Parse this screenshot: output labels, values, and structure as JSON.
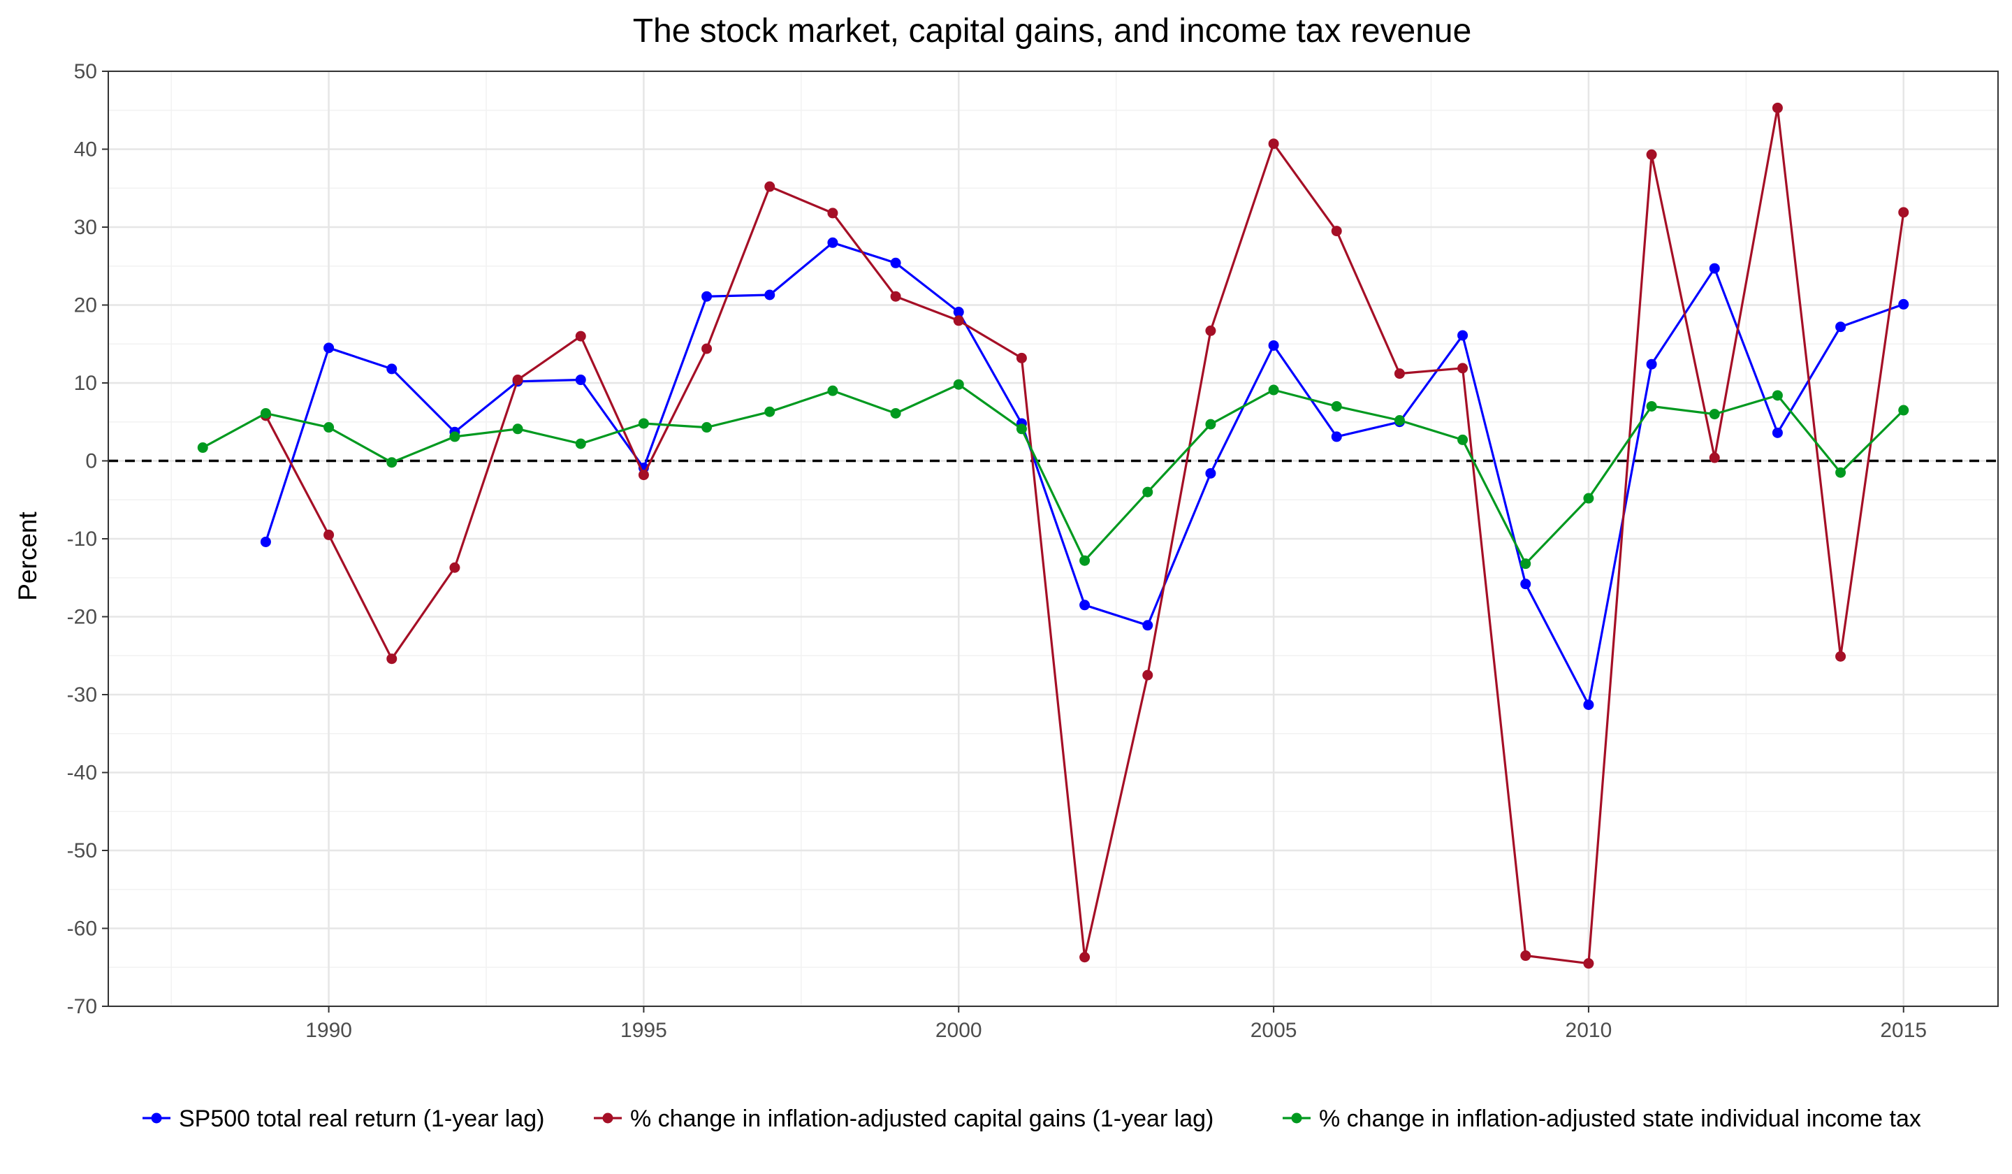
{
  "chart_data": {
    "type": "line",
    "title": "The stock market, capital gains, and income tax revenue",
    "xlabel": "",
    "ylabel": "Percent",
    "xlim": [
      1986.5,
      2016.5
    ],
    "ylim": [
      -70,
      50
    ],
    "x_ticks": [
      1990,
      1995,
      2000,
      2005,
      2010,
      2015
    ],
    "y_ticks": [
      -70,
      -60,
      -50,
      -40,
      -30,
      -20,
      -10,
      0,
      10,
      20,
      30,
      40,
      50
    ],
    "reference_line": {
      "y": 0,
      "style": "dashed",
      "color": "#000000"
    },
    "grid": true,
    "legend_position": "bottom",
    "series": [
      {
        "name": "SP500 total real return (1-year lag)",
        "color": "#0000ff",
        "points": [
          [
            1989,
            -10.4
          ],
          [
            1990,
            14.5
          ],
          [
            1991,
            11.8
          ],
          [
            1992,
            3.7
          ],
          [
            1993,
            10.2
          ],
          [
            1994,
            10.4
          ],
          [
            1995,
            -0.9
          ],
          [
            1996,
            21.1
          ],
          [
            1997,
            21.3
          ],
          [
            1998,
            28.0
          ],
          [
            1999,
            25.4
          ],
          [
            2000,
            19.1
          ],
          [
            2001,
            4.8
          ],
          [
            2002,
            -18.5
          ],
          [
            2003,
            -21.1
          ],
          [
            2004,
            -1.6
          ],
          [
            2005,
            14.8
          ],
          [
            2006,
            3.1
          ],
          [
            2007,
            5.0
          ],
          [
            2008,
            16.1
          ],
          [
            2009,
            -15.8
          ],
          [
            2010,
            -31.3
          ],
          [
            2011,
            12.4
          ],
          [
            2012,
            24.7
          ],
          [
            2013,
            3.6
          ],
          [
            2014,
            17.2
          ],
          [
            2015,
            20.1
          ]
        ]
      },
      {
        "name": "% change in inflation-adjusted capital gains (1-year lag)",
        "color": "#a50f26",
        "points": [
          [
            1989,
            5.8
          ],
          [
            1990,
            -9.5
          ],
          [
            1991,
            -25.4
          ],
          [
            1992,
            -13.7
          ],
          [
            1993,
            10.4
          ],
          [
            1994,
            16.0
          ],
          [
            1995,
            -1.8
          ],
          [
            1996,
            14.4
          ],
          [
            1997,
            35.2
          ],
          [
            1998,
            31.8
          ],
          [
            1999,
            21.1
          ],
          [
            2000,
            18.0
          ],
          [
            2001,
            13.2
          ],
          [
            2002,
            -63.7
          ],
          [
            2003,
            -27.5
          ],
          [
            2004,
            16.7
          ],
          [
            2005,
            40.7
          ],
          [
            2006,
            29.5
          ],
          [
            2007,
            11.2
          ],
          [
            2008,
            11.9
          ],
          [
            2009,
            -63.5
          ],
          [
            2010,
            -64.5
          ],
          [
            2011,
            39.3
          ],
          [
            2012,
            0.4
          ],
          [
            2013,
            45.3
          ],
          [
            2014,
            -25.1
          ],
          [
            2015,
            31.9
          ]
        ]
      },
      {
        "name": "% change in inflation-adjusted state individual income tax",
        "color": "#00991f",
        "points": [
          [
            1988,
            1.7
          ],
          [
            1989,
            6.1
          ],
          [
            1990,
            4.3
          ],
          [
            1991,
            -0.2
          ],
          [
            1992,
            3.1
          ],
          [
            1993,
            4.1
          ],
          [
            1994,
            2.2
          ],
          [
            1995,
            4.8
          ],
          [
            1996,
            4.3
          ],
          [
            1997,
            6.3
          ],
          [
            1998,
            9.0
          ],
          [
            1999,
            6.1
          ],
          [
            2000,
            9.8
          ],
          [
            2001,
            4.1
          ],
          [
            2002,
            -12.8
          ],
          [
            2003,
            -4.0
          ],
          [
            2004,
            4.7
          ],
          [
            2005,
            9.1
          ],
          [
            2006,
            7.0
          ],
          [
            2007,
            5.2
          ],
          [
            2008,
            2.7
          ],
          [
            2009,
            -13.2
          ],
          [
            2010,
            -4.8
          ],
          [
            2011,
            7.0
          ],
          [
            2012,
            6.0
          ],
          [
            2013,
            8.4
          ],
          [
            2014,
            -1.5
          ],
          [
            2015,
            6.5
          ]
        ]
      }
    ]
  }
}
